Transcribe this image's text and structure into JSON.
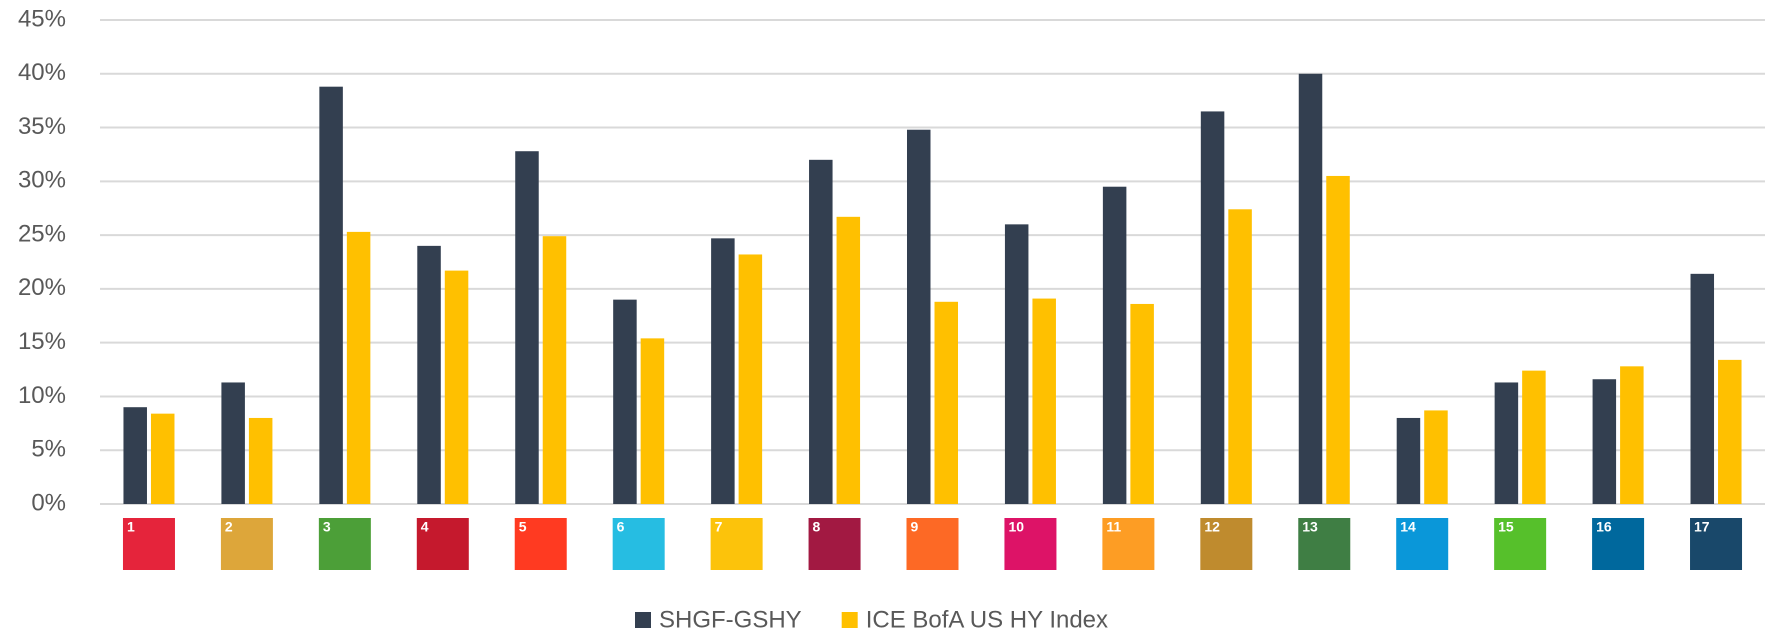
{
  "chart_data": {
    "type": "bar",
    "categories": [
      "1",
      "2",
      "3",
      "4",
      "5",
      "6",
      "7",
      "8",
      "9",
      "10",
      "11",
      "12",
      "13",
      "14",
      "15",
      "16",
      "17"
    ],
    "category_colors": [
      "#e5243b",
      "#dda63a",
      "#4c9f38",
      "#c5192d",
      "#ff3a21",
      "#26bde2",
      "#fcc30b",
      "#a21942",
      "#fd6925",
      "#dd1367",
      "#fd9d24",
      "#bf8b2e",
      "#3f7e44",
      "#0a97d9",
      "#56c02b",
      "#00689d",
      "#19486a"
    ],
    "series": [
      {
        "name": "SHGF-GSHY",
        "color": "#333f50",
        "values": [
          9.0,
          11.3,
          38.8,
          24.0,
          32.8,
          19.0,
          24.7,
          32.0,
          34.8,
          26.0,
          29.5,
          36.5,
          40.0,
          8.0,
          11.3,
          11.6,
          21.4
        ]
      },
      {
        "name": "ICE BofA US HY Index",
        "color": "#ffc000",
        "values": [
          8.4,
          8.0,
          25.3,
          21.7,
          24.9,
          15.4,
          23.2,
          26.7,
          18.8,
          19.1,
          18.6,
          27.4,
          30.5,
          8.7,
          12.4,
          12.8,
          13.4
        ]
      }
    ],
    "ylim": [
      0,
      45
    ],
    "yticks": [
      {
        "value": 0,
        "label": "0%"
      },
      {
        "value": 5,
        "label": "5%"
      },
      {
        "value": 10,
        "label": "10%"
      },
      {
        "value": 15,
        "label": "15%"
      },
      {
        "value": 20,
        "label": "20%"
      },
      {
        "value": 25,
        "label": "25%"
      },
      {
        "value": 30,
        "label": "30%"
      },
      {
        "value": 35,
        "label": "35%"
      },
      {
        "value": 40,
        "label": "40%"
      },
      {
        "value": 45,
        "label": "45%"
      }
    ],
    "grid": true,
    "legend": "bottom"
  }
}
